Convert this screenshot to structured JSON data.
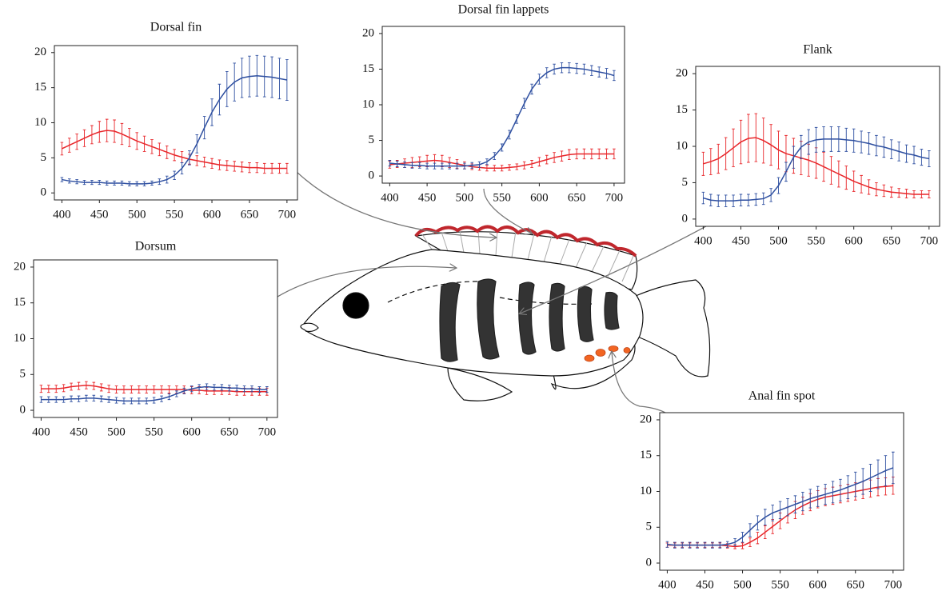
{
  "chart_data": [
    {
      "type": "line",
      "title": "Dorsal fin",
      "x": [
        400,
        410,
        420,
        430,
        440,
        450,
        460,
        470,
        480,
        490,
        500,
        510,
        520,
        530,
        540,
        550,
        560,
        570,
        580,
        590,
        600,
        610,
        620,
        630,
        640,
        650,
        660,
        670,
        680,
        690,
        700
      ],
      "xlim": [
        390,
        714
      ],
      "ylim": [
        -1,
        21
      ],
      "xticks": [
        400,
        450,
        500,
        550,
        600,
        650,
        700
      ],
      "yticks": [
        0,
        5,
        10,
        15,
        20
      ],
      "series": [
        {
          "color": "#e8262a",
          "values": [
            6.3,
            6.8,
            7.3,
            7.8,
            8.3,
            8.7,
            8.9,
            8.8,
            8.4,
            7.9,
            7.4,
            7.0,
            6.6,
            6.2,
            5.8,
            5.4,
            5.1,
            4.8,
            4.6,
            4.4,
            4.2,
            4.0,
            3.9,
            3.8,
            3.7,
            3.6,
            3.6,
            3.5,
            3.5,
            3.5,
            3.5
          ],
          "errors": [
            0.9,
            1.0,
            1.1,
            1.2,
            1.3,
            1.5,
            1.6,
            1.6,
            1.5,
            1.3,
            1.2,
            1.1,
            1.0,
            0.9,
            0.9,
            0.8,
            0.8,
            0.7,
            0.7,
            0.7,
            0.7,
            0.7,
            0.7,
            0.7,
            0.7,
            0.7,
            0.7,
            0.7,
            0.7,
            0.7,
            0.7
          ]
        },
        {
          "color": "#2e4fa0",
          "values": [
            1.9,
            1.7,
            1.6,
            1.5,
            1.5,
            1.5,
            1.4,
            1.4,
            1.4,
            1.3,
            1.3,
            1.3,
            1.4,
            1.6,
            1.9,
            2.5,
            3.5,
            5.0,
            7.0,
            9.3,
            11.5,
            13.3,
            14.8,
            15.8,
            16.4,
            16.6,
            16.7,
            16.6,
            16.5,
            16.3,
            16.1
          ],
          "errors": [
            0.3,
            0.3,
            0.3,
            0.3,
            0.3,
            0.3,
            0.3,
            0.3,
            0.3,
            0.3,
            0.3,
            0.3,
            0.3,
            0.4,
            0.5,
            0.6,
            0.8,
            1.0,
            1.3,
            1.6,
            1.9,
            2.2,
            2.5,
            2.7,
            2.8,
            2.9,
            2.9,
            2.9,
            2.9,
            2.9,
            2.9
          ]
        }
      ]
    },
    {
      "type": "line",
      "title": "Dorsal fin lappets",
      "x": [
        400,
        410,
        420,
        430,
        440,
        450,
        460,
        470,
        480,
        490,
        500,
        510,
        520,
        530,
        540,
        550,
        560,
        570,
        580,
        590,
        600,
        610,
        620,
        630,
        640,
        650,
        660,
        670,
        680,
        690,
        700
      ],
      "xlim": [
        390,
        714
      ],
      "ylim": [
        -1,
        21
      ],
      "xticks": [
        400,
        450,
        500,
        550,
        600,
        650,
        700
      ],
      "yticks": [
        0,
        5,
        10,
        15,
        20
      ],
      "series": [
        {
          "color": "#e8262a",
          "values": [
            1.6,
            1.7,
            1.8,
            1.9,
            2.0,
            2.1,
            2.2,
            2.1,
            1.9,
            1.7,
            1.5,
            1.3,
            1.2,
            1.1,
            1.1,
            1.1,
            1.2,
            1.3,
            1.5,
            1.7,
            2.0,
            2.3,
            2.6,
            2.8,
            3.0,
            3.1,
            3.1,
            3.1,
            3.1,
            3.1,
            3.1
          ],
          "errors": [
            0.5,
            0.5,
            0.6,
            0.7,
            0.7,
            0.8,
            0.8,
            0.8,
            0.7,
            0.6,
            0.5,
            0.4,
            0.4,
            0.4,
            0.4,
            0.4,
            0.4,
            0.4,
            0.5,
            0.5,
            0.6,
            0.6,
            0.7,
            0.7,
            0.7,
            0.7,
            0.7,
            0.7,
            0.7,
            0.7,
            0.7
          ]
        },
        {
          "color": "#2e4fa0",
          "values": [
            1.8,
            1.7,
            1.6,
            1.5,
            1.5,
            1.4,
            1.4,
            1.4,
            1.4,
            1.4,
            1.4,
            1.5,
            1.6,
            2.0,
            2.8,
            4.0,
            5.8,
            8.0,
            10.2,
            12.2,
            13.6,
            14.5,
            15.0,
            15.2,
            15.2,
            15.1,
            15.0,
            14.8,
            14.6,
            14.4,
            14.1
          ],
          "errors": [
            0.4,
            0.4,
            0.4,
            0.4,
            0.4,
            0.4,
            0.4,
            0.4,
            0.4,
            0.4,
            0.4,
            0.4,
            0.4,
            0.4,
            0.5,
            0.5,
            0.6,
            0.6,
            0.7,
            0.7,
            0.7,
            0.7,
            0.7,
            0.7,
            0.7,
            0.7,
            0.7,
            0.7,
            0.7,
            0.7,
            0.7
          ]
        }
      ]
    },
    {
      "type": "line",
      "title": "Flank",
      "x": [
        400,
        410,
        420,
        430,
        440,
        450,
        460,
        470,
        480,
        490,
        500,
        510,
        520,
        530,
        540,
        550,
        560,
        570,
        580,
        590,
        600,
        610,
        620,
        630,
        640,
        650,
        660,
        670,
        680,
        690,
        700
      ],
      "xlim": [
        390,
        714
      ],
      "ylim": [
        -1,
        21
      ],
      "xticks": [
        400,
        450,
        500,
        550,
        600,
        650,
        700
      ],
      "yticks": [
        0,
        5,
        10,
        15,
        20
      ],
      "series": [
        {
          "color": "#e8262a",
          "values": [
            7.6,
            7.9,
            8.3,
            9.0,
            9.8,
            10.6,
            11.1,
            11.2,
            10.8,
            10.2,
            9.5,
            9.0,
            8.7,
            8.4,
            8.1,
            7.7,
            7.2,
            6.7,
            6.2,
            5.7,
            5.2,
            4.8,
            4.4,
            4.1,
            3.9,
            3.7,
            3.6,
            3.5,
            3.4,
            3.4,
            3.4
          ],
          "errors": [
            1.6,
            1.8,
            2.0,
            2.2,
            2.6,
            3.0,
            3.3,
            3.3,
            3.1,
            2.8,
            2.6,
            2.5,
            2.4,
            2.3,
            2.2,
            2.1,
            2.0,
            1.9,
            1.8,
            1.6,
            1.4,
            1.2,
            1.0,
            0.9,
            0.8,
            0.7,
            0.6,
            0.6,
            0.5,
            0.5,
            0.5
          ]
        },
        {
          "color": "#2e4fa0",
          "values": [
            2.9,
            2.6,
            2.5,
            2.5,
            2.5,
            2.6,
            2.6,
            2.7,
            2.8,
            3.3,
            4.6,
            6.5,
            8.5,
            9.9,
            10.6,
            10.9,
            11.0,
            11.0,
            11.0,
            10.9,
            10.8,
            10.6,
            10.4,
            10.1,
            9.9,
            9.6,
            9.3,
            9.0,
            8.8,
            8.5,
            8.3
          ],
          "errors": [
            0.8,
            0.8,
            0.8,
            0.8,
            0.8,
            0.8,
            0.8,
            0.8,
            0.8,
            0.9,
            1.1,
            1.3,
            1.5,
            1.6,
            1.7,
            1.7,
            1.7,
            1.7,
            1.7,
            1.6,
            1.6,
            1.5,
            1.5,
            1.4,
            1.4,
            1.3,
            1.3,
            1.2,
            1.2,
            1.1,
            1.1
          ]
        }
      ]
    },
    {
      "type": "line",
      "title": "Dorsum",
      "x": [
        400,
        410,
        420,
        430,
        440,
        450,
        460,
        470,
        480,
        490,
        500,
        510,
        520,
        530,
        540,
        550,
        560,
        570,
        580,
        590,
        600,
        610,
        620,
        630,
        640,
        650,
        660,
        670,
        680,
        690,
        700
      ],
      "xlim": [
        390,
        714
      ],
      "ylim": [
        -1,
        21
      ],
      "xticks": [
        400,
        450,
        500,
        550,
        600,
        650,
        700
      ],
      "yticks": [
        0,
        5,
        10,
        15,
        20
      ],
      "series": [
        {
          "color": "#e8262a",
          "values": [
            3.0,
            3.0,
            3.0,
            3.1,
            3.3,
            3.4,
            3.5,
            3.4,
            3.2,
            3.0,
            2.9,
            2.9,
            2.9,
            2.9,
            2.9,
            2.9,
            2.9,
            2.9,
            2.9,
            2.9,
            2.8,
            2.8,
            2.7,
            2.7,
            2.7,
            2.7,
            2.6,
            2.6,
            2.6,
            2.6,
            2.6
          ],
          "errors": [
            0.5,
            0.5,
            0.5,
            0.5,
            0.5,
            0.5,
            0.5,
            0.5,
            0.5,
            0.5,
            0.5,
            0.5,
            0.5,
            0.5,
            0.5,
            0.5,
            0.5,
            0.5,
            0.5,
            0.5,
            0.5,
            0.5,
            0.5,
            0.5,
            0.5,
            0.5,
            0.5,
            0.5,
            0.5,
            0.5,
            0.5
          ]
        },
        {
          "color": "#2e4fa0",
          "values": [
            1.5,
            1.5,
            1.5,
            1.5,
            1.6,
            1.6,
            1.7,
            1.7,
            1.6,
            1.5,
            1.4,
            1.3,
            1.3,
            1.3,
            1.3,
            1.4,
            1.6,
            1.9,
            2.3,
            2.7,
            3.0,
            3.2,
            3.3,
            3.2,
            3.2,
            3.1,
            3.1,
            3.0,
            3.0,
            2.9,
            2.9
          ],
          "errors": [
            0.4,
            0.4,
            0.4,
            0.4,
            0.4,
            0.4,
            0.4,
            0.4,
            0.4,
            0.4,
            0.4,
            0.4,
            0.4,
            0.4,
            0.4,
            0.4,
            0.4,
            0.4,
            0.4,
            0.4,
            0.4,
            0.4,
            0.4,
            0.4,
            0.4,
            0.4,
            0.4,
            0.4,
            0.4,
            0.4,
            0.4
          ]
        }
      ]
    },
    {
      "type": "line",
      "title": "Anal fin spot",
      "x": [
        400,
        410,
        420,
        430,
        440,
        450,
        460,
        470,
        480,
        490,
        500,
        510,
        520,
        530,
        540,
        550,
        560,
        570,
        580,
        590,
        600,
        610,
        620,
        630,
        640,
        650,
        660,
        670,
        680,
        690,
        700
      ],
      "xlim": [
        390,
        714
      ],
      "ylim": [
        -1,
        21
      ],
      "xticks": [
        400,
        450,
        500,
        550,
        600,
        650,
        700
      ],
      "yticks": [
        0,
        5,
        10,
        15,
        20
      ],
      "series": [
        {
          "color": "#e8262a",
          "values": [
            2.5,
            2.5,
            2.5,
            2.5,
            2.5,
            2.5,
            2.5,
            2.5,
            2.4,
            2.3,
            2.4,
            2.9,
            3.5,
            4.3,
            5.1,
            5.9,
            6.7,
            7.4,
            8.0,
            8.5,
            8.9,
            9.2,
            9.4,
            9.6,
            9.8,
            10.0,
            10.2,
            10.4,
            10.6,
            10.7,
            10.8
          ],
          "errors": [
            0.3,
            0.3,
            0.3,
            0.3,
            0.3,
            0.3,
            0.3,
            0.3,
            0.3,
            0.3,
            0.4,
            0.6,
            0.8,
            0.9,
            1.0,
            1.1,
            1.1,
            1.2,
            1.2,
            1.2,
            1.2,
            1.2,
            1.2,
            1.2,
            1.2,
            1.2,
            1.2,
            1.2,
            1.2,
            1.2,
            1.2
          ]
        },
        {
          "color": "#2e4fa0",
          "values": [
            2.6,
            2.5,
            2.5,
            2.5,
            2.5,
            2.5,
            2.5,
            2.5,
            2.6,
            2.9,
            3.6,
            4.6,
            5.6,
            6.4,
            7.0,
            7.4,
            7.8,
            8.2,
            8.6,
            9.0,
            9.3,
            9.6,
            9.9,
            10.2,
            10.6,
            11.0,
            11.4,
            11.9,
            12.4,
            12.9,
            13.3
          ],
          "errors": [
            0.4,
            0.4,
            0.4,
            0.4,
            0.4,
            0.4,
            0.4,
            0.4,
            0.4,
            0.5,
            0.7,
            0.9,
            1.0,
            1.1,
            1.1,
            1.2,
            1.2,
            1.2,
            1.3,
            1.3,
            1.4,
            1.4,
            1.5,
            1.5,
            1.6,
            1.7,
            1.8,
            1.9,
            2.0,
            2.1,
            2.2
          ]
        }
      ]
    }
  ]
}
